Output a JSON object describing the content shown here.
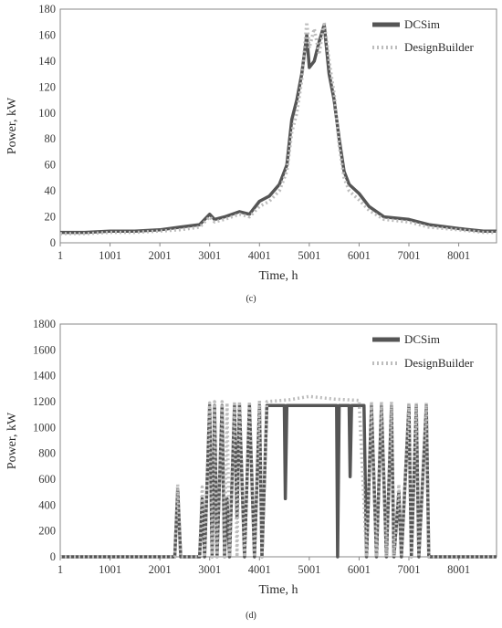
{
  "chart_data": [
    {
      "type": "line",
      "caption": "(c)",
      "xlabel": "Time, h",
      "ylabel": "Power, kW",
      "xlim": [
        1,
        8760
      ],
      "ylim": [
        0,
        180
      ],
      "x_ticks": [
        1,
        1001,
        2001,
        3001,
        4001,
        5001,
        6001,
        7001,
        8001
      ],
      "y_ticks": [
        0,
        20,
        40,
        60,
        80,
        100,
        120,
        140,
        160,
        180
      ],
      "legend": "top-right",
      "grid": false,
      "series": [
        {
          "name": "DCSim",
          "color": "#555555",
          "style": "solid",
          "points": [
            [
              1,
              8
            ],
            [
              500,
              8
            ],
            [
              1001,
              9
            ],
            [
              1500,
              9
            ],
            [
              2001,
              10
            ],
            [
              2400,
              12
            ],
            [
              2800,
              14
            ],
            [
              3001,
              22
            ],
            [
              3100,
              18
            ],
            [
              3300,
              20
            ],
            [
              3600,
              24
            ],
            [
              3800,
              22
            ],
            [
              4001,
              32
            ],
            [
              4200,
              36
            ],
            [
              4400,
              45
            ],
            [
              4550,
              60
            ],
            [
              4650,
              95
            ],
            [
              4750,
              110
            ],
            [
              4850,
              130
            ],
            [
              4950,
              160
            ],
            [
              5001,
              135
            ],
            [
              5100,
              140
            ],
            [
              5200,
              155
            ],
            [
              5300,
              168
            ],
            [
              5400,
              130
            ],
            [
              5500,
              110
            ],
            [
              5600,
              80
            ],
            [
              5700,
              55
            ],
            [
              5800,
              45
            ],
            [
              6001,
              38
            ],
            [
              6200,
              28
            ],
            [
              6500,
              20
            ],
            [
              7001,
              18
            ],
            [
              7400,
              14
            ],
            [
              8001,
              11
            ],
            [
              8500,
              9
            ],
            [
              8760,
              9
            ]
          ]
        },
        {
          "name": "DesignBuilder",
          "color": "#bdbdbd",
          "style": "dotted",
          "points": [
            [
              1,
              7
            ],
            [
              500,
              7
            ],
            [
              1001,
              8
            ],
            [
              1500,
              8
            ],
            [
              2001,
              9
            ],
            [
              2400,
              10
            ],
            [
              2800,
              12
            ],
            [
              3001,
              20
            ],
            [
              3100,
              16
            ],
            [
              3300,
              18
            ],
            [
              3600,
              22
            ],
            [
              3800,
              20
            ],
            [
              4001,
              28
            ],
            [
              4200,
              32
            ],
            [
              4400,
              40
            ],
            [
              4550,
              55
            ],
            [
              4650,
              85
            ],
            [
              4750,
              100
            ],
            [
              4850,
              125
            ],
            [
              4950,
              170
            ],
            [
              5001,
              150
            ],
            [
              5100,
              165
            ],
            [
              5200,
              145
            ],
            [
              5300,
              170
            ],
            [
              5400,
              140
            ],
            [
              5500,
              115
            ],
            [
              5600,
              75
            ],
            [
              5700,
              50
            ],
            [
              5800,
              40
            ],
            [
              6001,
              33
            ],
            [
              6200,
              25
            ],
            [
              6500,
              18
            ],
            [
              7001,
              16
            ],
            [
              7400,
              12
            ],
            [
              8001,
              10
            ],
            [
              8500,
              8
            ],
            [
              8760,
              8
            ]
          ]
        }
      ]
    },
    {
      "type": "line",
      "caption": "(d)",
      "xlabel": "Time, h",
      "ylabel": "Power, kW",
      "xlim": [
        1,
        8760
      ],
      "ylim": [
        0,
        1800
      ],
      "x_ticks": [
        1,
        1001,
        2001,
        3001,
        4001,
        5001,
        6001,
        7001,
        8001
      ],
      "y_ticks": [
        0,
        200,
        400,
        600,
        800,
        1000,
        1200,
        1400,
        1600,
        1800
      ],
      "legend": "top-right",
      "grid": false,
      "series": [
        {
          "name": "DCSim",
          "color": "#555555",
          "style": "solid",
          "points": [
            [
              1,
              0
            ],
            [
              2300,
              0
            ],
            [
              2360,
              520
            ],
            [
              2420,
              0
            ],
            [
              2800,
              0
            ],
            [
              2850,
              450
            ],
            [
              2900,
              0
            ],
            [
              3001,
              1170
            ],
            [
              3050,
              0
            ],
            [
              3100,
              1170
            ],
            [
              3150,
              0
            ],
            [
              3250,
              1170
            ],
            [
              3300,
              0
            ],
            [
              3350,
              450
            ],
            [
              3400,
              0
            ],
            [
              3500,
              1170
            ],
            [
              3550,
              300
            ],
            [
              3600,
              1170
            ],
            [
              3700,
              0
            ],
            [
              3800,
              1170
            ],
            [
              3900,
              0
            ],
            [
              4001,
              1170
            ],
            [
              4050,
              0
            ],
            [
              4150,
              1170
            ],
            [
              4500,
              1170
            ],
            [
              4520,
              450
            ],
            [
              4550,
              1170
            ],
            [
              5550,
              1170
            ],
            [
              5570,
              0
            ],
            [
              5600,
              1170
            ],
            [
              5800,
              1170
            ],
            [
              5820,
              620
            ],
            [
              5850,
              1170
            ],
            [
              6100,
              1170
            ],
            [
              6150,
              0
            ],
            [
              6250,
              1170
            ],
            [
              6350,
              0
            ],
            [
              6450,
              1170
            ],
            [
              6550,
              0
            ],
            [
              6650,
              1170
            ],
            [
              6700,
              0
            ],
            [
              6800,
              500
            ],
            [
              6850,
              0
            ],
            [
              7001,
              1170
            ],
            [
              7050,
              0
            ],
            [
              7150,
              1170
            ],
            [
              7200,
              0
            ],
            [
              7350,
              1170
            ],
            [
              7400,
              0
            ],
            [
              8760,
              0
            ]
          ]
        },
        {
          "name": "DesignBuilder",
          "color": "#bdbdbd",
          "style": "dotted",
          "points": [
            [
              1,
              0
            ],
            [
              2300,
              0
            ],
            [
              2360,
              560
            ],
            [
              2420,
              0
            ],
            [
              2800,
              0
            ],
            [
              2850,
              540
            ],
            [
              2900,
              0
            ],
            [
              3001,
              1190
            ],
            [
              3050,
              0
            ],
            [
              3100,
              1200
            ],
            [
              3150,
              0
            ],
            [
              3250,
              1200
            ],
            [
              3300,
              0
            ],
            [
              3350,
              1190
            ],
            [
              3400,
              0
            ],
            [
              3500,
              1200
            ],
            [
              3550,
              0
            ],
            [
              3600,
              1200
            ],
            [
              3700,
              0
            ],
            [
              3800,
              1200
            ],
            [
              3900,
              0
            ],
            [
              4001,
              1210
            ],
            [
              4050,
              0
            ],
            [
              4150,
              1200
            ],
            [
              4600,
              1215
            ],
            [
              5001,
              1240
            ],
            [
              5500,
              1220
            ],
            [
              6001,
              1210
            ],
            [
              6150,
              0
            ],
            [
              6250,
              1200
            ],
            [
              6350,
              0
            ],
            [
              6450,
              1200
            ],
            [
              6550,
              0
            ],
            [
              6650,
              1200
            ],
            [
              6700,
              0
            ],
            [
              6800,
              560
            ],
            [
              6850,
              0
            ],
            [
              7001,
              1190
            ],
            [
              7050,
              0
            ],
            [
              7150,
              1190
            ],
            [
              7200,
              0
            ],
            [
              7350,
              1190
            ],
            [
              7400,
              0
            ],
            [
              8760,
              0
            ]
          ]
        }
      ]
    }
  ]
}
